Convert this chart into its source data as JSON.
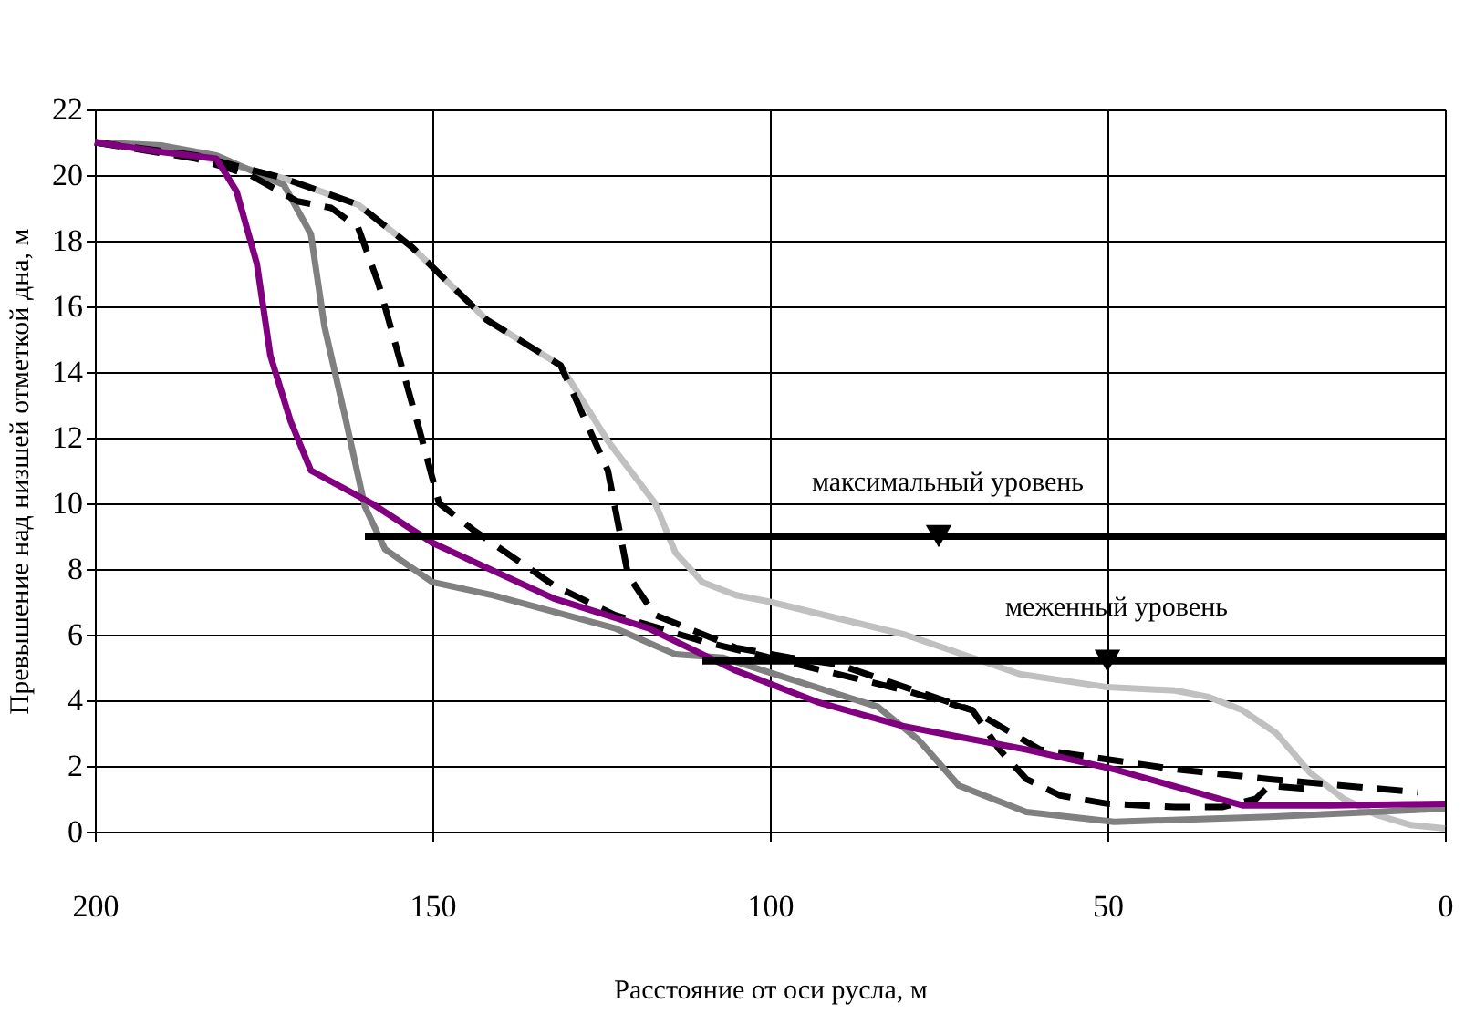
{
  "chart_data": {
    "type": "line",
    "xlabel": "Расстояние от оси русла, м",
    "ylabel": "Превышение над низшей отметкой дна, м",
    "xlim": [
      200,
      0
    ],
    "xticks": [
      200,
      150,
      100,
      50,
      0
    ],
    "ylim": [
      0,
      22
    ],
    "yticks": [
      0,
      2,
      4,
      6,
      8,
      10,
      12,
      14,
      16,
      18,
      20,
      22
    ],
    "grid": true,
    "marker": "none",
    "series": [
      {
        "color": "#c0c0c0",
        "line_style": "solid",
        "x": [
          200,
          185,
          172,
          161,
          153,
          142,
          131,
          124,
          117,
          114,
          110,
          105,
          100,
          90,
          80,
          70,
          63,
          50,
          40,
          35,
          30,
          25,
          20,
          15,
          10,
          5,
          0
        ],
        "values": [
          21,
          20.6,
          19.9,
          19.1,
          17.8,
          15.6,
          14.2,
          11.9,
          10,
          8.5,
          7.6,
          7.2,
          7,
          6.5,
          6,
          5.3,
          4.8,
          4.4,
          4.3,
          4.1,
          3.7,
          3,
          1.8,
          1,
          0.5,
          0.2,
          0.1
        ]
      },
      {
        "color": "#808080",
        "line_style": "solid",
        "x": [
          200,
          190,
          182,
          172,
          168,
          166,
          163,
          160,
          157,
          150,
          141,
          123,
          114,
          107,
          84,
          78,
          72,
          62,
          49,
          26,
          0
        ],
        "values": [
          21,
          20.9,
          20.6,
          19.7,
          18.2,
          15.4,
          12.7,
          9.9,
          8.6,
          7.6,
          7.2,
          6.2,
          5.4,
          5.3,
          3.8,
          2.8,
          1.4,
          0.6,
          0.3,
          0.45,
          0.7
        ]
      },
      {
        "color": "#000000",
        "line_style": "dashed",
        "x": [
          200,
          185,
          177,
          170,
          165,
          161,
          158,
          155,
          152,
          149,
          144,
          132,
          123,
          110,
          100,
          90,
          80,
          70,
          60,
          50,
          40,
          26,
          4
        ],
        "values": [
          21,
          20.5,
          20,
          19.2,
          19,
          18.4,
          16.7,
          14.5,
          12.3,
          10,
          9.2,
          7.5,
          6.6,
          5.8,
          5.3,
          4.8,
          4.3,
          3.7,
          2.5,
          2.2,
          1.9,
          1.6,
          1.2
        ]
      },
      {
        "color": "#000000",
        "line_style": "dashed",
        "x": [
          200,
          185,
          172,
          161,
          153,
          142,
          131,
          124,
          121,
          117,
          105,
          97,
          90,
          80,
          70,
          66,
          62,
          57,
          50,
          40,
          33,
          28,
          26,
          20
        ],
        "values": [
          21,
          20.6,
          19.9,
          19.1,
          17.8,
          15.6,
          14.2,
          11,
          7.8,
          6.6,
          5.6,
          5.3,
          5.1,
          4.4,
          3.7,
          2.5,
          1.6,
          1.1,
          0.85,
          0.75,
          0.75,
          1,
          1.4,
          1.3
        ]
      },
      {
        "color": "#800080",
        "line_style": "solid",
        "x": [
          200,
          190,
          182,
          179,
          176,
          174,
          171,
          168,
          159,
          150,
          132,
          118,
          105,
          93,
          80,
          62,
          49,
          30,
          17,
          0
        ],
        "values": [
          21,
          20.7,
          20.5,
          19.5,
          17.3,
          14.5,
          12.5,
          11,
          10,
          8.8,
          7.1,
          6.2,
          4.9,
          3.95,
          3.2,
          2.5,
          1.9,
          0.8,
          0.8,
          0.85
        ]
      },
      {
        "color": "#000000",
        "line_style": "solid",
        "x": [
          160,
          0
        ],
        "values": [
          9,
          9
        ]
      },
      {
        "color": "#000000",
        "line_style": "solid",
        "x": [
          110,
          0
        ],
        "values": [
          5.2,
          5.2
        ]
      },
      {
        "type": "scatter",
        "color": "#000000",
        "marker": "triangle",
        "x": [
          75,
          50
        ],
        "values": [
          9,
          5.2
        ]
      }
    ],
    "annotations": [
      {
        "text": "максимальный уровень",
        "x": 75,
        "y": 9
      },
      {
        "text": "меженный уровень",
        "x": 50,
        "y": 5.2
      }
    ]
  }
}
